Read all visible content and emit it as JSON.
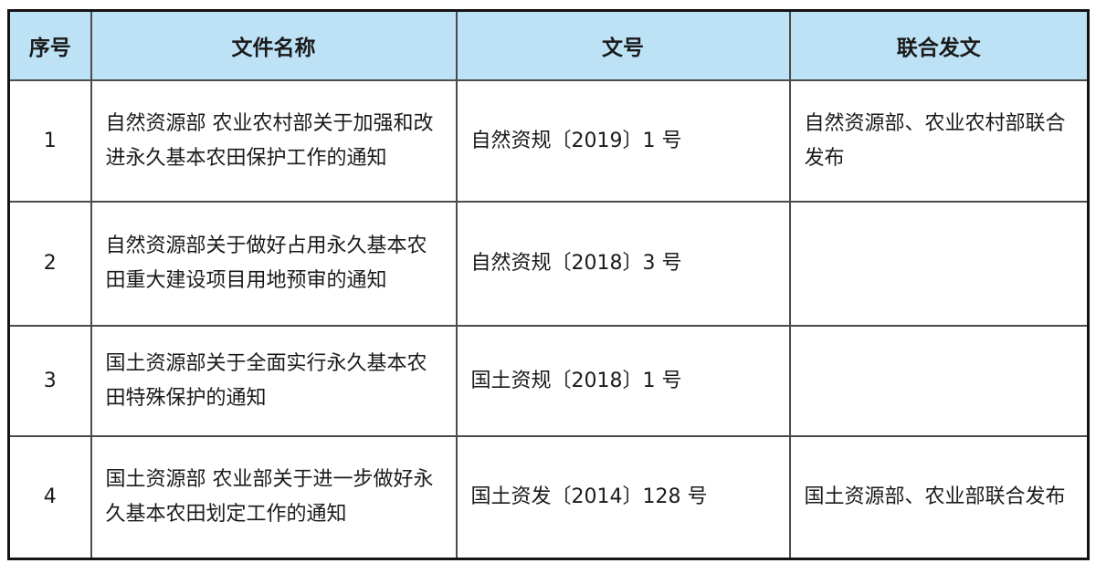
{
  "table": {
    "headers": {
      "index": "序号",
      "name": "文件名称",
      "doc_no": "文号",
      "joint": "联合发文"
    },
    "rows": [
      {
        "index": "1",
        "name": "自然资源部 农业农村部关于加强和改进永久基本农田保护工作的通知",
        "doc_no": "自然资规〔2019〕1 号",
        "joint": "自然资源部、农业农村部联合发布"
      },
      {
        "index": "2",
        "name": "自然资源部关于做好占用永久基本农田重大建设项目用地预审的通知",
        "doc_no": "自然资规〔2018〕3 号",
        "joint": ""
      },
      {
        "index": "3",
        "name": "国土资源部关于全面实行永久基本农田特殊保护的通知",
        "doc_no": "国土资规〔2018〕1 号",
        "joint": ""
      },
      {
        "index": "4",
        "name": "国土资源部 农业部关于进一步做好永久基本农田划定工作的通知",
        "doc_no": "国土资发〔2014〕128 号",
        "joint": "国土资源部、农业部联合发布"
      }
    ],
    "colors": {
      "header_bg": "#bde2f6",
      "outer_border": "#141414",
      "inner_border": "#4b4b4b",
      "text": "#1a1a1a"
    }
  }
}
